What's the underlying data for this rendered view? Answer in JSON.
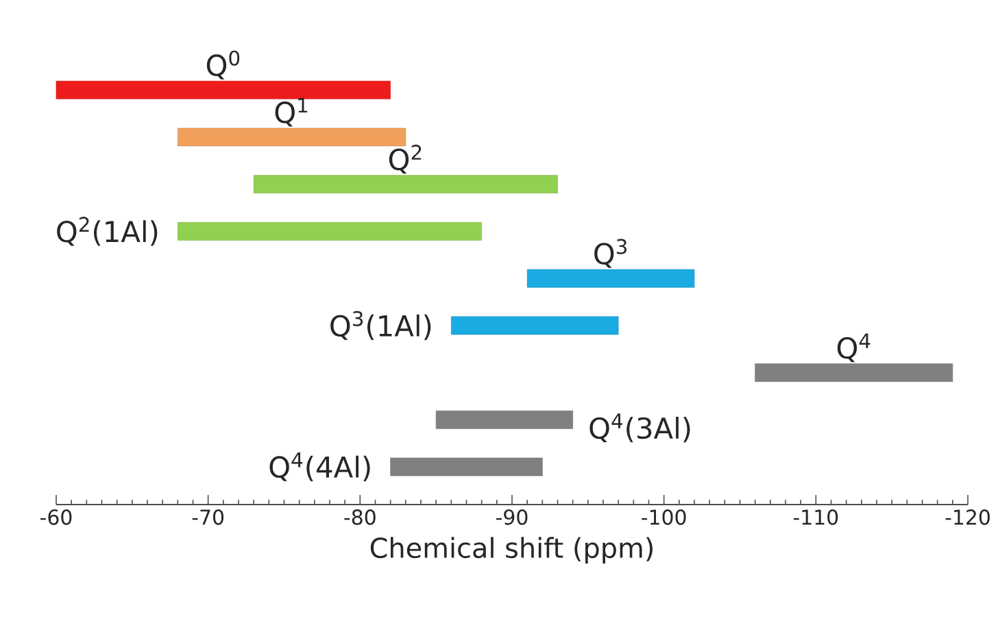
{
  "chart_data": {
    "type": "bar",
    "orientation": "horizontal",
    "xlabel": "Chemical shift (ppm)",
    "categories": [
      "Q$^{0}$",
      "Q$^{1}$",
      "Q$^{2}$",
      "Q$^{2}$(1Al)",
      "Q$^{3}$",
      "Q$^{3}$(1Al)",
      "Q$^{4}$",
      "Q$^{4}$(3Al)",
      "Q$^{4}$(4Al)"
    ],
    "base": [
      -60,
      -68,
      -73,
      -68,
      -91,
      -86,
      -106,
      -85,
      -82
    ],
    "values": [
      -22,
      -15,
      -20,
      -20,
      -11,
      -11,
      -13,
      -9,
      -10
    ],
    "colors": [
      "#ee1c1c",
      "#f0a05a",
      "#92d050",
      "#92d050",
      "#1aabe3",
      "#1aabe3",
      "#808080",
      "#808080",
      "#808080"
    ],
    "xlim": [
      -60,
      -120
    ],
    "xticks": [
      -60,
      -70,
      -80,
      -90,
      -100,
      -110,
      -120
    ]
  }
}
